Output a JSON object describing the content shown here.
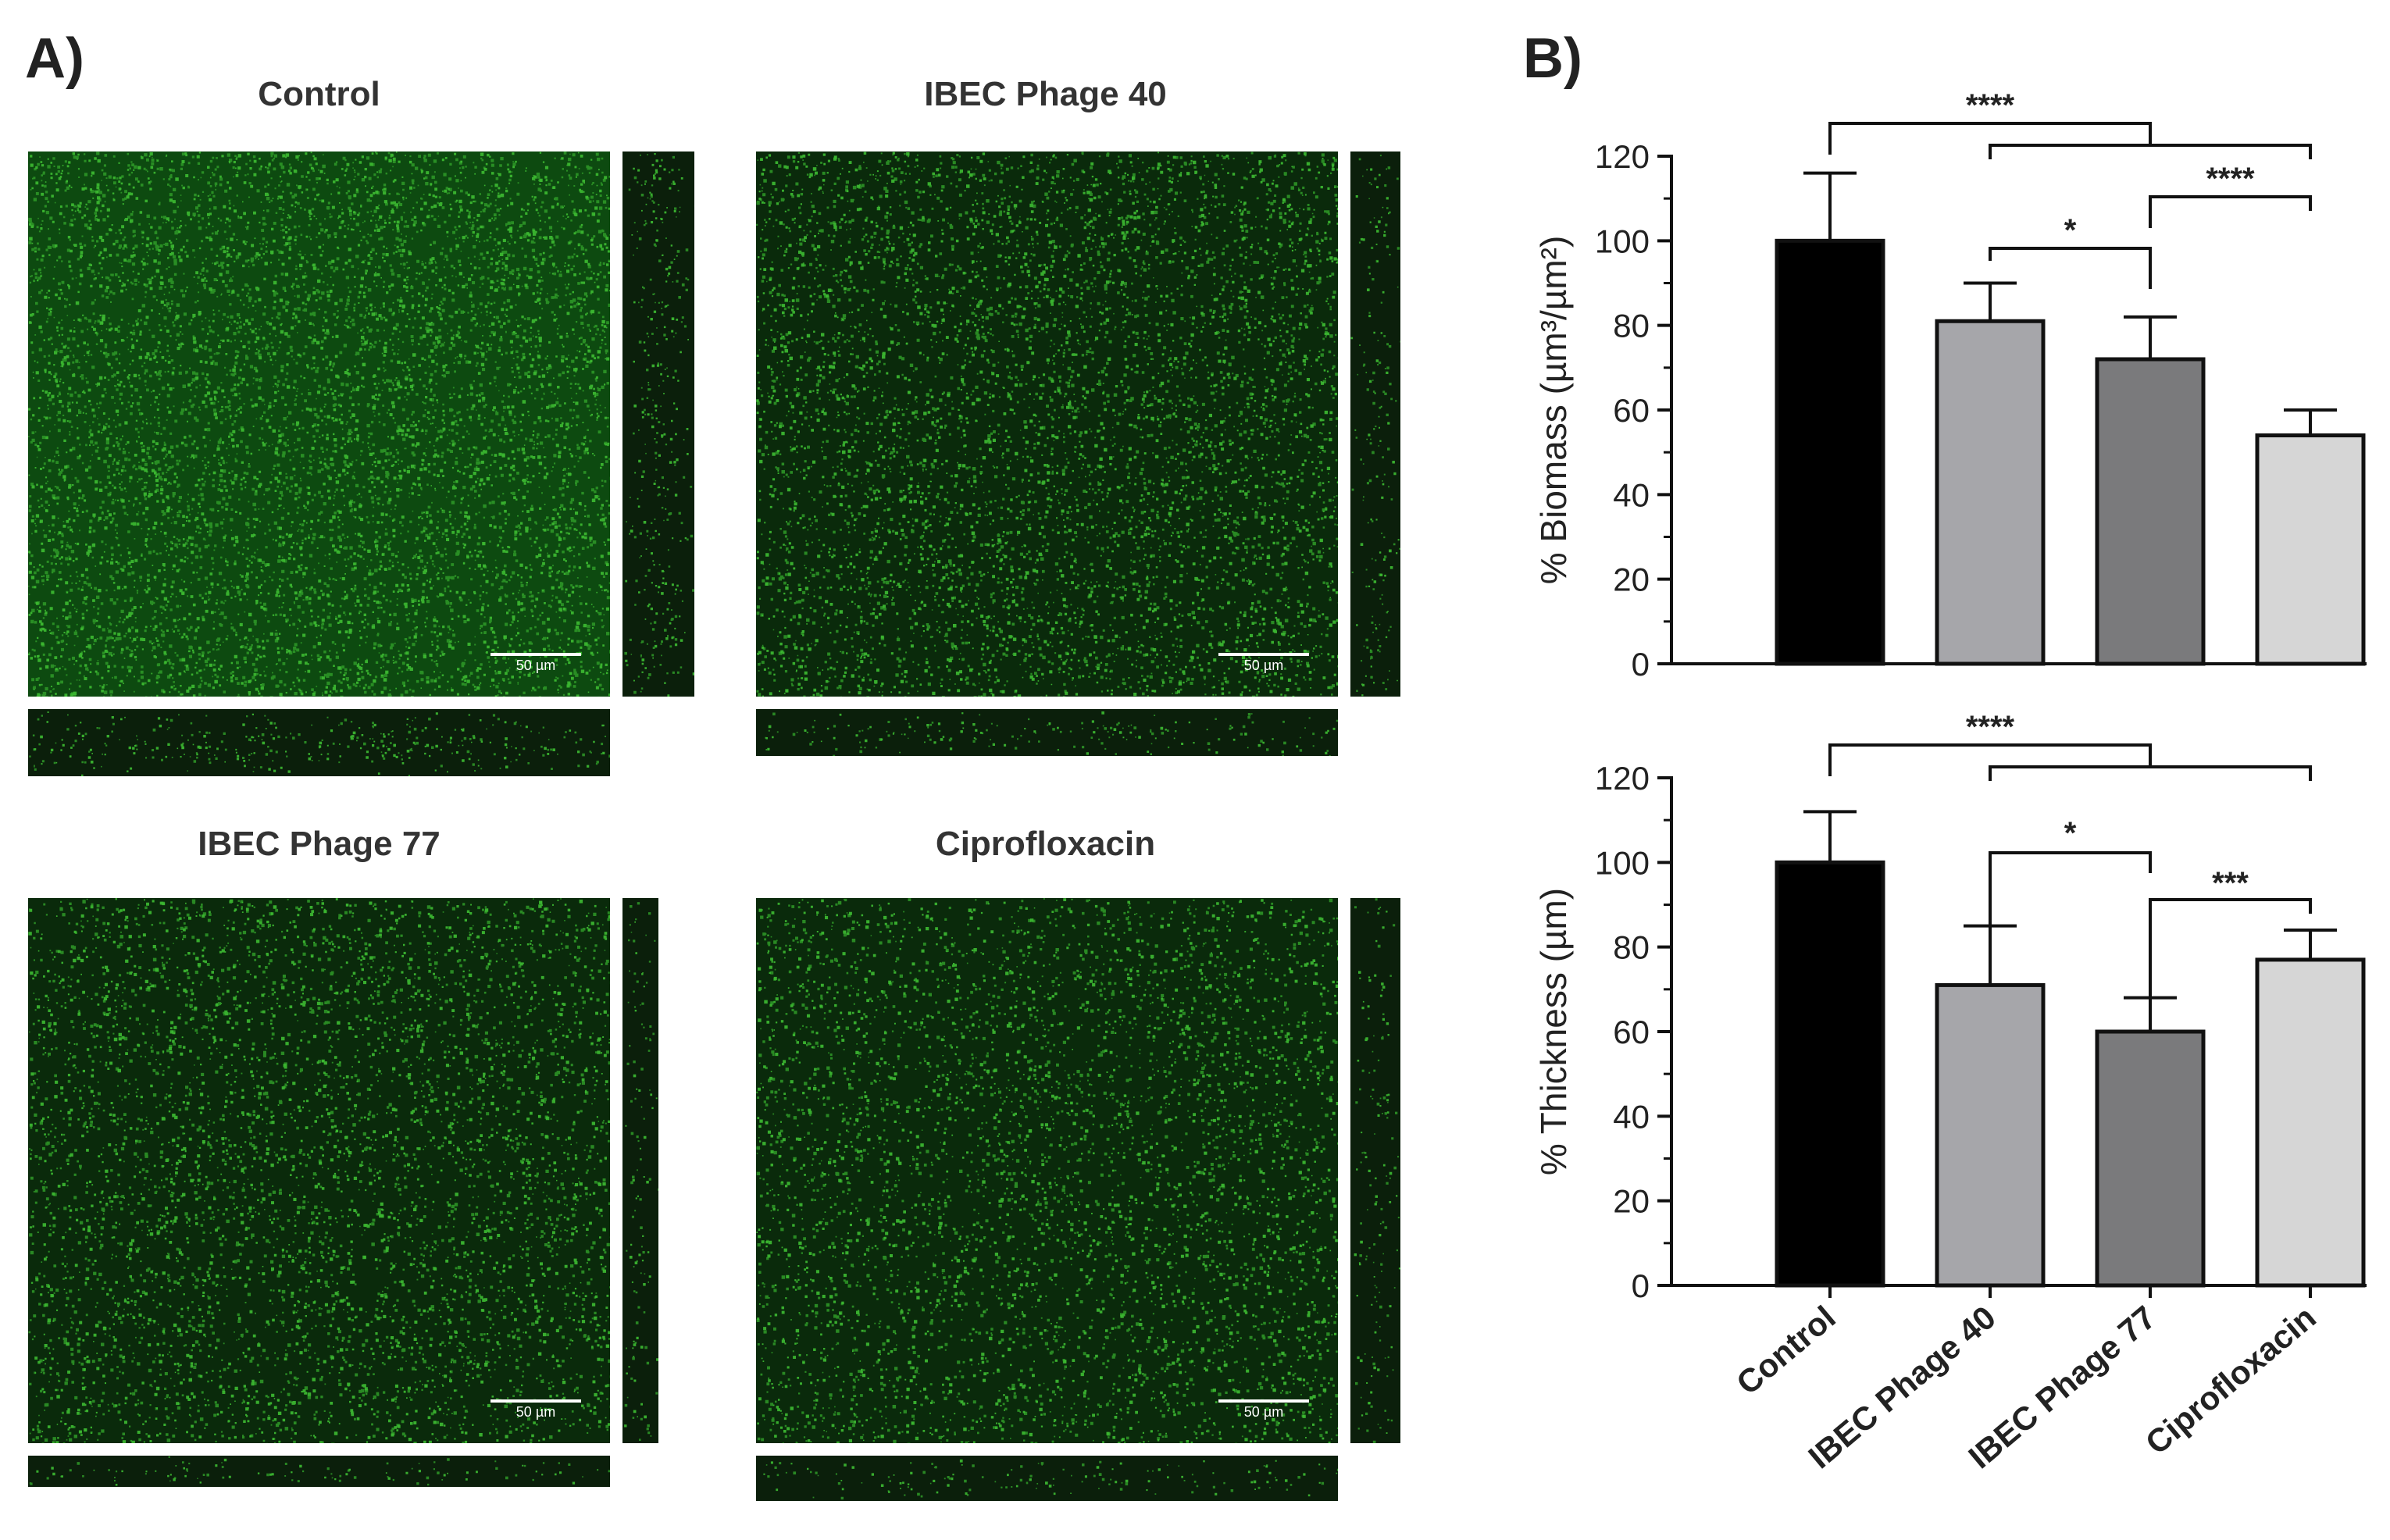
{
  "panel_labels": {
    "a": "A)",
    "b": "B)"
  },
  "micrographs": [
    {
      "title": "Control",
      "scale": "50 µm",
      "density": 1.0
    },
    {
      "title": "IBEC Phage 40",
      "scale": "50 µm",
      "density": 0.78
    },
    {
      "title": "IBEC Phage 77",
      "scale": "50 µm",
      "density": 0.68
    },
    {
      "title": "Ciprofloxacin",
      "scale": "50 µm",
      "density": 0.62
    }
  ],
  "colors": {
    "bars": [
      "#000000",
      "#a6a6aa",
      "#7a7a7c",
      "#d6d6d6"
    ],
    "signal": "#3dbb32"
  },
  "chart_data": [
    {
      "type": "bar",
      "categories": [
        "Control",
        "IBEC Phage 40",
        "IBEC Phage 77",
        "Ciprofloxacin"
      ],
      "values": [
        100,
        81,
        72,
        54
      ],
      "errors": [
        16,
        9,
        10,
        6
      ],
      "ylabel": "% Biomass (µm³/µm²)",
      "ylim": [
        0,
        120
      ],
      "yticks": [
        "0",
        "20",
        "40",
        "60",
        "80",
        "100",
        "120"
      ],
      "significance": [
        {
          "from": 0,
          "to": [
            2,
            1,
            3
          ],
          "label": "****"
        },
        {
          "from": 1,
          "to": 2,
          "label": "*"
        },
        {
          "from": 2,
          "to": 3,
          "label": "****"
        }
      ]
    },
    {
      "type": "bar",
      "categories": [
        "Control",
        "IBEC Phage 40",
        "IBEC Phage 77",
        "Ciprofloxacin"
      ],
      "values": [
        100,
        71,
        60,
        77
      ],
      "errors": [
        12,
        14,
        8,
        7
      ],
      "ylabel": "% Thickness (µm)",
      "ylim": [
        0,
        120
      ],
      "yticks": [
        "0",
        "20",
        "40",
        "60",
        "80",
        "100",
        "120"
      ],
      "xticklabels": [
        "Control",
        "IBEC Phage 40",
        "IBEC Phage 77",
        "Ciprofloxacin"
      ],
      "significance": [
        {
          "from": 0,
          "to": [
            2,
            1,
            3
          ],
          "label": "****"
        },
        {
          "from": 1,
          "to": 2,
          "label": "*"
        },
        {
          "from": 2,
          "to": 3,
          "label": "***"
        }
      ]
    }
  ]
}
